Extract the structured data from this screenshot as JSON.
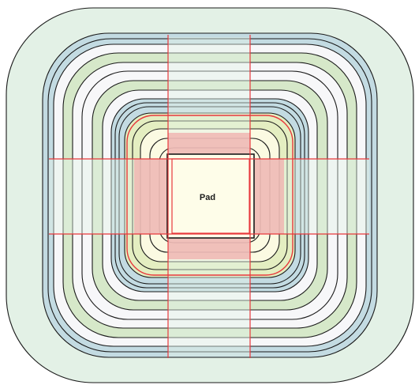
{
  "pad": {
    "label": "Pad"
  },
  "colors": {
    "outline": "#1a1a1a",
    "guide_line": "#e8383c",
    "highlight_ring": "#e8383c",
    "outer_region": "#e3f1e6",
    "ring_blue": "#c3dbe2",
    "ring_white": "#f7f7f9",
    "ring_green": "#d6e8c9",
    "ring_yellow_green": "#e4eec1",
    "ring_cream": "#fbfae2",
    "pad_fill": "#fefde9",
    "cross_band": "#f0b6b3"
  }
}
